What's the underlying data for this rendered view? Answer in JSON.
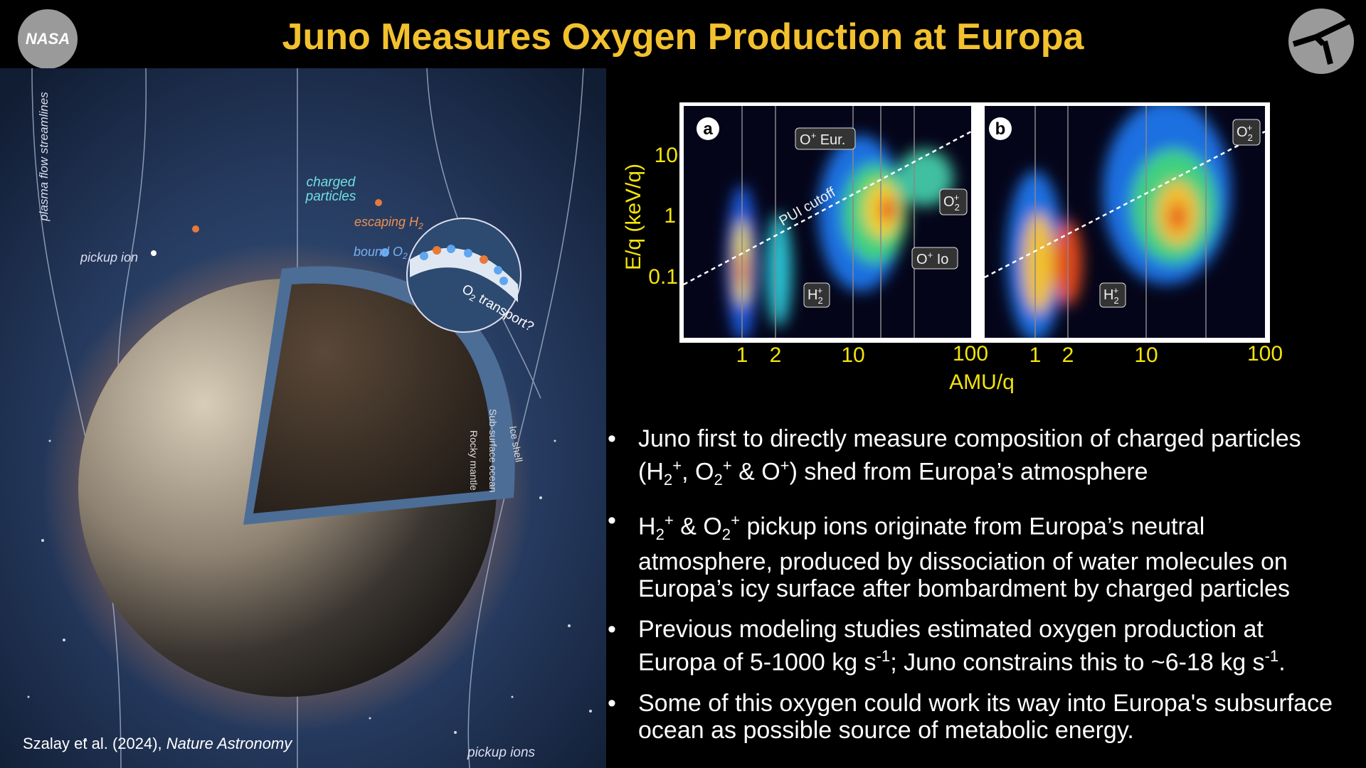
{
  "header": {
    "title": "Juno Measures Oxygen Production at Europa",
    "logo": "NASA"
  },
  "illustration": {
    "labels": {
      "streamlines": "plasma flow streamlines",
      "charged": [
        "charged",
        "particles"
      ],
      "escaping": [
        "escaping H",
        "2"
      ],
      "bound": [
        "bound O",
        "2"
      ],
      "pickup_ion": "pickup ion",
      "transport": [
        "O",
        "2",
        " transport?"
      ],
      "mantle": "Rocky mantle",
      "ocean": "Sub-surface ocean",
      "shell": "Ice shell",
      "pickup_ions": "pickup ions"
    },
    "caption": [
      "Szalay et al. (2024), ",
      "Nature Astronomy"
    ]
  },
  "figure": {
    "y_label": "E/q (keV/q)",
    "x_label": "AMU/q",
    "y_tick_labels": [
      "10",
      "1",
      "0.1"
    ],
    "panel_a": {
      "letter": "a",
      "x_tick_labels": [
        "1",
        "2",
        "10",
        "100"
      ],
      "o_eur": [
        "O",
        "+",
        " Eur."
      ],
      "pui": "PUI cutoff",
      "o2": [
        "O",
        "2",
        "+"
      ],
      "o_io": [
        "O",
        "+",
        " Io"
      ],
      "h2": [
        "H",
        "2",
        "+"
      ]
    },
    "panel_b": {
      "letter": "b",
      "x_tick_labels": [
        "1",
        "2",
        "10",
        "100"
      ],
      "o2": [
        "O",
        "2",
        "+"
      ],
      "h2": [
        "H",
        "2",
        "+"
      ]
    }
  },
  "bullets": [
    [
      "Juno first to directly measure composition of charged particles (H",
      "2",
      "+",
      ", O",
      "2",
      "+",
      " & O",
      "+",
      ") shed from Europa’s atmosphere"
    ],
    [
      "H",
      "2",
      "+",
      " & O",
      "2",
      "+",
      " pickup ions originate from Europa’s neutral atmosphere, produced by dissociation of water molecules on Europa’s icy surface after bombardment by charged particles"
    ],
    [
      "Previous modeling studies estimated oxygen production at Europa of 5-1000 kg s",
      "-1",
      "; Juno constrains this to ~6-18 kg s",
      "-1",
      "."
    ],
    [
      "Some of this oxygen could work its way into Europa's subsurface ocean as possible source of metabolic energy."
    ]
  ]
}
